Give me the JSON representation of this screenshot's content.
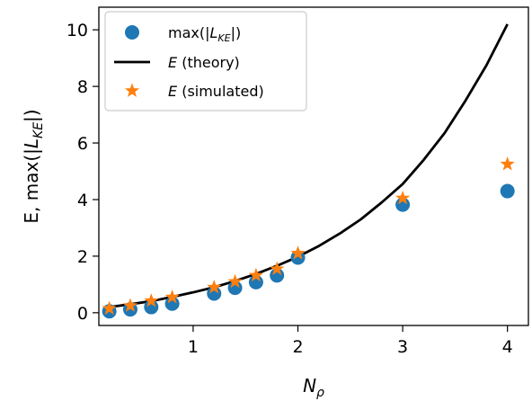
{
  "chart_data": {
    "type": "scatter",
    "xlabel": "N_ρ",
    "ylabel": "E, max(|L_KE|)",
    "xlim": [
      0.1,
      4.2
    ],
    "ylim": [
      -0.45,
      10.8
    ],
    "x_ticks": [
      1,
      2,
      3,
      4
    ],
    "y_ticks": [
      0,
      2,
      4,
      6,
      8,
      10
    ],
    "grid": false,
    "legend_position": "top-left",
    "series": [
      {
        "name": "max(|L_KE|)",
        "kind": "scatter",
        "marker": "circle",
        "color": "#1f77b4",
        "x": [
          0.2,
          0.4,
          0.6,
          0.8,
          1.2,
          1.4,
          1.6,
          1.8,
          2.0,
          3.0,
          4.0
        ],
        "y": [
          0.05,
          0.12,
          0.2,
          0.32,
          0.68,
          0.88,
          1.08,
          1.32,
          1.95,
          3.82,
          4.3
        ]
      },
      {
        "name": "E (theory)",
        "kind": "line",
        "color": "#000000",
        "x": [
          0.2,
          0.4,
          0.6,
          0.8,
          1.0,
          1.2,
          1.4,
          1.6,
          1.8,
          2.0,
          2.2,
          2.4,
          2.6,
          2.8,
          3.0,
          3.2,
          3.4,
          3.6,
          3.8,
          4.0
        ],
        "y": [
          0.2,
          0.3,
          0.41,
          0.56,
          0.72,
          0.9,
          1.12,
          1.37,
          1.66,
          1.98,
          2.36,
          2.8,
          3.3,
          3.9,
          4.55,
          5.4,
          6.35,
          7.5,
          8.75,
          10.2
        ]
      },
      {
        "name": "E (simulated)",
        "kind": "scatter",
        "marker": "star",
        "color": "#ff7f0e",
        "x": [
          0.2,
          0.4,
          0.6,
          0.8,
          1.2,
          1.4,
          1.6,
          1.8,
          2.0,
          3.0,
          4.0
        ],
        "y": [
          0.15,
          0.25,
          0.42,
          0.55,
          0.9,
          1.1,
          1.32,
          1.55,
          2.1,
          4.05,
          5.25
        ]
      }
    ]
  }
}
